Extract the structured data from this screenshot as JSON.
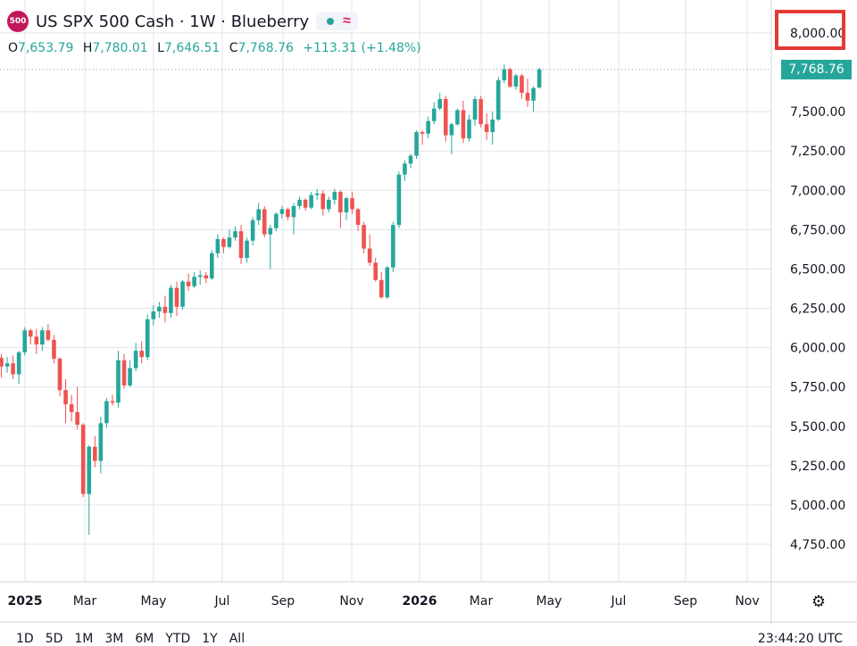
{
  "header": {
    "symbol_badge": "500",
    "title": "US SPX 500 Cash · 1W · Blueberry",
    "status_dot_color": "#26a69a",
    "status_icon": "wave-icon"
  },
  "ohlc": {
    "open_key": "O",
    "open": "7,653.79",
    "high_key": "H",
    "high": "7,780.01",
    "low_key": "L",
    "low": "7,646.51",
    "close_key": "C",
    "close": "7,768.76",
    "change": "+113.31 (+1.48%)"
  },
  "last_price_label": "7,768.76",
  "colors": {
    "up": "#26a69a",
    "down": "#ef5350",
    "grid": "#e0e3eb",
    "highlight": "#e53935"
  },
  "ranges": [
    "1D",
    "5D",
    "1M",
    "3M",
    "6M",
    "YTD",
    "1Y",
    "All"
  ],
  "clock": "23:44:20 UTC",
  "chart_data": {
    "type": "candlestick",
    "title": "US SPX 500 Cash · 1W · Blueberry",
    "y_ticks": [
      "8,000.00",
      "7,500.00",
      "7,250.00",
      "7,000.00",
      "6,750.00",
      "6,500.00",
      "6,250.00",
      "6,000.00",
      "5,750.00",
      "5,500.00",
      "5,250.00",
      "5,000.00",
      "4,750.00"
    ],
    "x_ticks": [
      "2025",
      "Mar",
      "May",
      "Jul",
      "Sep",
      "Nov",
      "2026",
      "Mar",
      "May",
      "Jul",
      "Sep",
      "Nov"
    ],
    "ylim": [
      4600,
      8100
    ],
    "grid": true,
    "highlighted_tick": "8,000.00",
    "last_price": 7768.76,
    "candles": [
      [
        5935,
        5960,
        5810,
        5880
      ],
      [
        5880,
        5940,
        5840,
        5900
      ],
      [
        5900,
        5950,
        5800,
        5830
      ],
      [
        5830,
        5980,
        5770,
        5970
      ],
      [
        5970,
        6130,
        5950,
        6110
      ],
      [
        6110,
        6120,
        6020,
        6070
      ],
      [
        6070,
        6120,
        5960,
        6020
      ],
      [
        6020,
        6130,
        5980,
        6110
      ],
      [
        6110,
        6150,
        6040,
        6050
      ],
      [
        6050,
        6080,
        5900,
        5930
      ],
      [
        5930,
        5940,
        5690,
        5730
      ],
      [
        5730,
        5800,
        5520,
        5640
      ],
      [
        5640,
        5700,
        5530,
        5590
      ],
      [
        5590,
        5750,
        5480,
        5510
      ],
      [
        5510,
        5520,
        5050,
        5070
      ],
      [
        5070,
        5380,
        4810,
        5370
      ],
      [
        5370,
        5440,
        5240,
        5280
      ],
      [
        5280,
        5560,
        5200,
        5520
      ],
      [
        5520,
        5680,
        5490,
        5660
      ],
      [
        5660,
        5700,
        5630,
        5650
      ],
      [
        5650,
        5980,
        5620,
        5920
      ],
      [
        5920,
        5960,
        5740,
        5760
      ],
      [
        5760,
        5920,
        5750,
        5870
      ],
      [
        5870,
        6030,
        5850,
        5980
      ],
      [
        5980,
        6040,
        5900,
        5940
      ],
      [
        5940,
        6210,
        5920,
        6180
      ],
      [
        6180,
        6270,
        6140,
        6230
      ],
      [
        6230,
        6290,
        6190,
        6260
      ],
      [
        6260,
        6330,
        6160,
        6220
      ],
      [
        6220,
        6400,
        6190,
        6380
      ],
      [
        6380,
        6420,
        6200,
        6260
      ],
      [
        6260,
        6430,
        6240,
        6420
      ],
      [
        6420,
        6470,
        6360,
        6390
      ],
      [
        6390,
        6480,
        6380,
        6450
      ],
      [
        6450,
        6490,
        6400,
        6460
      ],
      [
        6460,
        6480,
        6410,
        6440
      ],
      [
        6440,
        6620,
        6430,
        6600
      ],
      [
        6600,
        6720,
        6570,
        6690
      ],
      [
        6690,
        6700,
        6600,
        6640
      ],
      [
        6640,
        6750,
        6630,
        6700
      ],
      [
        6700,
        6770,
        6680,
        6740
      ],
      [
        6740,
        6780,
        6530,
        6570
      ],
      [
        6570,
        6700,
        6540,
        6680
      ],
      [
        6680,
        6830,
        6650,
        6810
      ],
      [
        6810,
        6920,
        6780,
        6880
      ],
      [
        6880,
        6900,
        6700,
        6720
      ],
      [
        6720,
        6780,
        6500,
        6760
      ],
      [
        6760,
        6860,
        6740,
        6850
      ],
      [
        6850,
        6900,
        6820,
        6880
      ],
      [
        6880,
        6890,
        6810,
        6830
      ],
      [
        6830,
        6920,
        6720,
        6900
      ],
      [
        6900,
        6960,
        6880,
        6940
      ],
      [
        6940,
        6950,
        6870,
        6890
      ],
      [
        6890,
        6990,
        6880,
        6970
      ],
      [
        6970,
        7010,
        6940,
        6980
      ],
      [
        6980,
        7000,
        6840,
        6880
      ],
      [
        6880,
        6960,
        6860,
        6940
      ],
      [
        6940,
        7010,
        6910,
        6990
      ],
      [
        6990,
        7000,
        6760,
        6860
      ],
      [
        6860,
        6960,
        6810,
        6950
      ],
      [
        6950,
        6990,
        6850,
        6880
      ],
      [
        6880,
        6890,
        6740,
        6780
      ],
      [
        6780,
        6800,
        6600,
        6630
      ],
      [
        6630,
        6720,
        6520,
        6540
      ],
      [
        6540,
        6570,
        6420,
        6430
      ],
      [
        6430,
        6480,
        6310,
        6320
      ],
      [
        6320,
        6520,
        6310,
        6510
      ],
      [
        6510,
        6800,
        6480,
        6780
      ],
      [
        6780,
        7120,
        6760,
        7100
      ],
      [
        7100,
        7190,
        7060,
        7170
      ],
      [
        7170,
        7230,
        7140,
        7220
      ],
      [
        7220,
        7380,
        7200,
        7370
      ],
      [
        7370,
        7380,
        7290,
        7360
      ],
      [
        7360,
        7470,
        7330,
        7440
      ],
      [
        7440,
        7560,
        7420,
        7520
      ],
      [
        7520,
        7620,
        7510,
        7580
      ],
      [
        7580,
        7600,
        7310,
        7350
      ],
      [
        7350,
        7430,
        7230,
        7420
      ],
      [
        7420,
        7520,
        7410,
        7510
      ],
      [
        7510,
        7570,
        7300,
        7330
      ],
      [
        7330,
        7480,
        7310,
        7450
      ],
      [
        7450,
        7600,
        7410,
        7580
      ],
      [
        7580,
        7600,
        7400,
        7420
      ],
      [
        7420,
        7490,
        7320,
        7370
      ],
      [
        7370,
        7500,
        7290,
        7450
      ],
      [
        7450,
        7720,
        7440,
        7700
      ],
      [
        7700,
        7800,
        7680,
        7770
      ],
      [
        7770,
        7780,
        7650,
        7660
      ],
      [
        7660,
        7740,
        7640,
        7730
      ],
      [
        7730,
        7740,
        7580,
        7620
      ],
      [
        7620,
        7710,
        7530,
        7570
      ],
      [
        7570,
        7660,
        7500,
        7650
      ],
      [
        7653.79,
        7780.01,
        7646.51,
        7768.76
      ]
    ]
  }
}
